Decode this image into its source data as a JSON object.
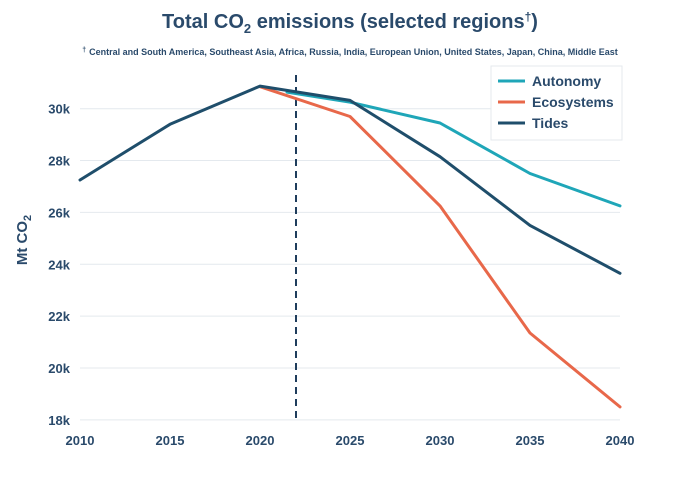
{
  "chart_data": {
    "type": "line",
    "title_main": "Total CO",
    "title_sub": "2",
    "title_tail": " emissions (selected regions",
    "title_dagger": "†",
    "title_close": ")",
    "subtitle_mark": "†",
    "subtitle": "Central and South America, Southeast Asia, Africa, Russia, India, European Union, United States, Japan, China, Middle East",
    "ylabel_main": "Mt CO",
    "ylabel_sub": "2",
    "xlabel": "",
    "x": [
      2010,
      2015,
      2020,
      2025,
      2030,
      2035,
      2040
    ],
    "x_tick_labels": [
      "2010",
      "2015",
      "2020",
      "2025",
      "2030",
      "2035",
      "2040"
    ],
    "xlim": [
      2010,
      2040
    ],
    "ylim": [
      17800,
      31300
    ],
    "y_ticks": [
      18000,
      20000,
      22000,
      24000,
      26000,
      28000,
      30000
    ],
    "y_tick_labels": [
      "18k",
      "20k",
      "22k",
      "24k",
      "26k",
      "28k",
      "30k"
    ],
    "vertical_marker": {
      "x": 2022,
      "style": "dashed",
      "color": "#1f3d5c"
    },
    "legend_position": "top-right",
    "series": [
      {
        "name": "Autonomy",
        "color": "#1fa6b8",
        "points": [
          [
            2021.5,
            30640
          ],
          [
            2025,
            30250
          ],
          [
            2030,
            29450
          ],
          [
            2035,
            27500
          ],
          [
            2040,
            26250
          ]
        ]
      },
      {
        "name": "Ecosystems",
        "color": "#e8684a",
        "points": [
          [
            2020,
            30850
          ],
          [
            2025,
            29700
          ],
          [
            2030,
            26250
          ],
          [
            2035,
            21350
          ],
          [
            2040,
            18500
          ]
        ]
      },
      {
        "name": "Tides",
        "color": "#1f4e6b",
        "points": [
          [
            2010,
            27250
          ],
          [
            2015,
            29400
          ],
          [
            2020,
            30870
          ],
          [
            2025,
            30320
          ],
          [
            2030,
            28150
          ],
          [
            2035,
            25500
          ],
          [
            2040,
            23650
          ]
        ]
      }
    ]
  }
}
